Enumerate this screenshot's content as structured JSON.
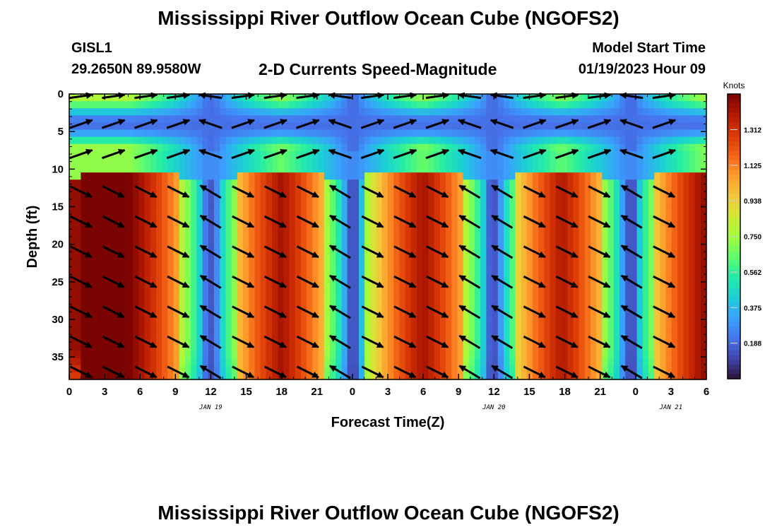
{
  "header": {
    "title": "Mississippi River Outflow Ocean Cube (NGOFS2)",
    "station": "GISL1",
    "coords": "29.2650N  89.9580W",
    "subtitle": "2-D Currents Speed-Magnitude",
    "model_label": "Model Start Time",
    "model_time": "01/19/2023 Hour 09"
  },
  "footer": {
    "title": "Mississippi River Outflow Ocean Cube (NGOFS2)"
  },
  "chart_data": {
    "type": "heatmap",
    "title": "2-D Currents Speed-Magnitude",
    "xlabel": "Forecast Time(Z)",
    "ylabel": "Depth (ft)",
    "x_tick_labels": [
      "0",
      "3",
      "6",
      "9",
      "12",
      "15",
      "18",
      "21",
      "0",
      "3",
      "6",
      "9",
      "12",
      "15",
      "18",
      "21",
      "0",
      "3",
      "6"
    ],
    "x_hours": [
      0,
      3,
      6,
      9,
      12,
      15,
      18,
      21,
      24,
      27,
      30,
      33,
      36,
      39,
      42,
      45,
      48,
      51,
      54
    ],
    "xlim": [
      0,
      54
    ],
    "date_labels": [
      {
        "label": "JAN 19",
        "hour": 12
      },
      {
        "label": "JAN 20",
        "hour": 36
      },
      {
        "label": "JAN 21",
        "hour": 51
      }
    ],
    "y_tick_labels": [
      "0",
      "5",
      "10",
      "15",
      "20",
      "25",
      "30",
      "35"
    ],
    "y_values": [
      0,
      5,
      10,
      15,
      20,
      25,
      30,
      35
    ],
    "ylim": [
      0,
      38
    ],
    "colorbar": {
      "label": "Knots",
      "ticks": [
        "0.188",
        "0.375",
        "0.562",
        "0.750",
        "0.938",
        "1.125",
        "1.312"
      ],
      "tick_values": [
        0.188,
        0.375,
        0.562,
        0.75,
        0.938,
        1.125,
        1.312
      ],
      "range": [
        0,
        1.5
      ],
      "colors": [
        "#30123b",
        "#4145ab",
        "#4675ed",
        "#39a2fc",
        "#1bcfd4",
        "#24eca6",
        "#61fc6c",
        "#a4fc3b",
        "#d1e834",
        "#f3c63a",
        "#fe9b2d",
        "#f36315",
        "#d93806",
        "#b11901",
        "#7a0402"
      ]
    },
    "flood_intervals_hours": [
      [
        1,
        9.5
      ],
      [
        14,
        21.5
      ],
      [
        25,
        33.5
      ],
      [
        38,
        45
      ],
      [
        49.5,
        54
      ]
    ],
    "slack_hours": [
      12,
      24,
      36,
      47.5
    ]
  }
}
